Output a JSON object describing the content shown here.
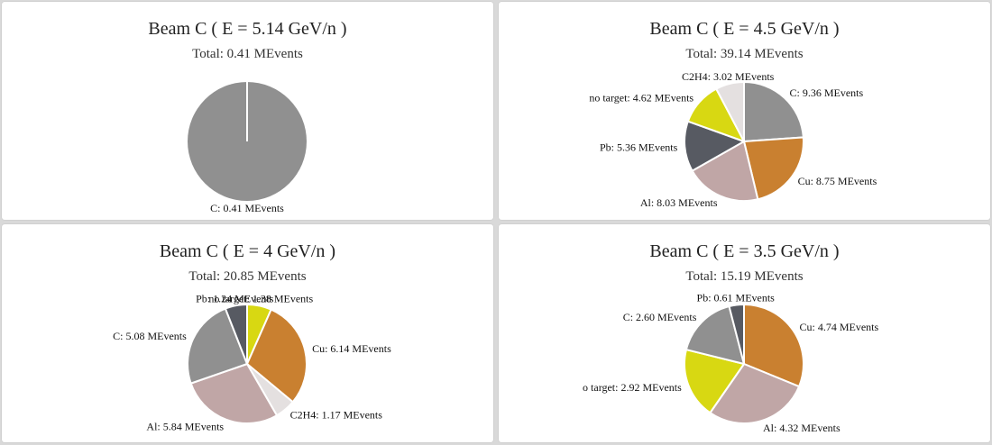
{
  "chart_data": [
    {
      "type": "pie",
      "title": "Beam C ( E = 5.14 GeV/n )",
      "subtitle": "Total: 0.41 MEvents",
      "slices": [
        {
          "label": "C: 0.41 MEvents",
          "value": 0.41,
          "color": "#909090"
        }
      ]
    },
    {
      "type": "pie",
      "title": "Beam C ( E = 4.5 GeV/n )",
      "subtitle": "Total: 39.14 MEvents",
      "slices": [
        {
          "label": "C: 9.36 MEvents",
          "value": 9.36,
          "color": "#909090"
        },
        {
          "label": "Cu: 8.75 MEvents",
          "value": 8.75,
          "color": "#c98030"
        },
        {
          "label": "Al: 8.03 MEvents",
          "value": 8.03,
          "color": "#c0a6a6"
        },
        {
          "label": "Pb: 5.36 MEvents",
          "value": 5.36,
          "color": "#575a62"
        },
        {
          "label": "no target: 4.62 MEvents",
          "value": 4.62,
          "color": "#d8d812"
        },
        {
          "label": "C2H4: 3.02 MEvents",
          "value": 3.02,
          "color": "#e4e0e0"
        }
      ]
    },
    {
      "type": "pie",
      "title": "Beam C ( E = 4 GeV/n )",
      "subtitle": "Total: 20.85 MEvents",
      "slices": [
        {
          "label": "no target: 1.38 MEvents",
          "value": 1.38,
          "color": "#d8d812"
        },
        {
          "label": "Cu: 6.14 MEvents",
          "value": 6.14,
          "color": "#c98030"
        },
        {
          "label": "C2H4: 1.17 MEvents",
          "value": 1.17,
          "color": "#e4e0e0"
        },
        {
          "label": "Al: 5.84 MEvents",
          "value": 5.84,
          "color": "#c0a6a6"
        },
        {
          "label": "C: 5.08 MEvents",
          "value": 5.08,
          "color": "#909090"
        },
        {
          "label": "Pb: 1.24 MEvents",
          "value": 1.24,
          "color": "#575a62"
        }
      ]
    },
    {
      "type": "pie",
      "title": "Beam C ( E = 3.5 GeV/n )",
      "subtitle": "Total: 15.19 MEvents",
      "slices": [
        {
          "label": "Cu: 4.74 MEvents",
          "value": 4.74,
          "color": "#c98030"
        },
        {
          "label": "Al: 4.32 MEvents",
          "value": 4.32,
          "color": "#c0a6a6"
        },
        {
          "label": "o target: 2.92 MEvents",
          "value": 2.92,
          "color": "#d8d812"
        },
        {
          "label": "C: 2.60 MEvents",
          "value": 2.6,
          "color": "#909090"
        },
        {
          "label": "Pb: 0.61 MEvents",
          "value": 0.61,
          "color": "#575a62"
        }
      ]
    }
  ]
}
